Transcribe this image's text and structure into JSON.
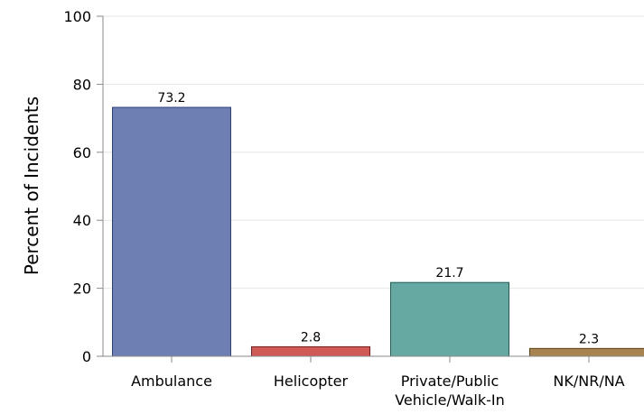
{
  "chart_data": {
    "type": "bar",
    "title": "",
    "xlabel": "",
    "ylabel": "Percent of Incidents",
    "ylim": [
      0,
      100
    ],
    "yticks": [
      0,
      20,
      40,
      60,
      80,
      100
    ],
    "grid": "horizontal",
    "categories": [
      [
        "Ambulance"
      ],
      [
        "Helicopter"
      ],
      [
        "Private/Public",
        "Vehicle/Walk-In"
      ],
      [
        "NK/NR/NA"
      ]
    ],
    "values": [
      73.2,
      2.8,
      21.7,
      2.3
    ],
    "value_labels": [
      "73.2",
      "2.8",
      "21.7",
      "2.3"
    ],
    "colors": [
      "#6e7fb4",
      "#d05a56",
      "#66a9a2",
      "#a78450"
    ],
    "edge_colors": [
      "#2f3f7a",
      "#7a2020",
      "#1d5e57",
      "#5e4214"
    ]
  }
}
